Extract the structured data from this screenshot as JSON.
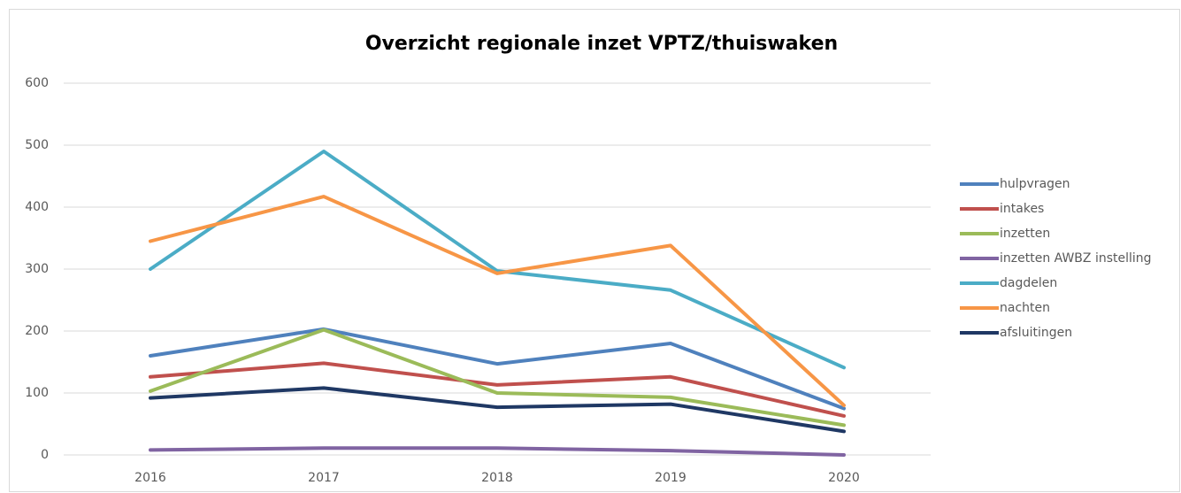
{
  "chart_data": {
    "type": "line",
    "title": "Overzicht regionale inzet VPTZ/thuiswaken",
    "categories": [
      "2016",
      "2017",
      "2018",
      "2019",
      "2020"
    ],
    "series": [
      {
        "name": "hulpvragen",
        "color": "#4f81bd",
        "values": [
          160,
          203,
          147,
          180,
          75
        ]
      },
      {
        "name": "intakes",
        "color": "#c0504d",
        "values": [
          126,
          148,
          113,
          126,
          63
        ]
      },
      {
        "name": "inzetten",
        "color": "#9bbb59",
        "values": [
          103,
          202,
          100,
          93,
          48
        ]
      },
      {
        "name": "inzetten AWBZ instelling",
        "color": "#8064a2",
        "values": [
          8,
          11,
          11,
          7,
          0
        ]
      },
      {
        "name": "dagdelen",
        "color": "#4bacc6",
        "values": [
          300,
          490,
          297,
          266,
          141
        ]
      },
      {
        "name": "nachten",
        "color": "#f79646",
        "values": [
          345,
          417,
          293,
          338,
          80
        ]
      },
      {
        "name": "afsluitingen",
        "color": "#1f3864",
        "values": [
          92,
          108,
          77,
          82,
          38
        ]
      }
    ],
    "ylim": [
      0,
      600
    ],
    "yticks": [
      0,
      100,
      200,
      300,
      400,
      500,
      600
    ],
    "grid": true,
    "legend": "right"
  }
}
